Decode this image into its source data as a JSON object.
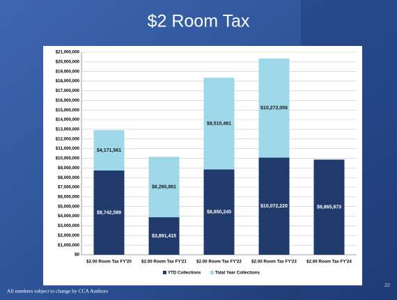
{
  "title": "$2 Room Tax",
  "footer": "All numbers subject to change by CCA Auditors",
  "page_number": "22",
  "chart_data": {
    "type": "stacked_bar",
    "categories": [
      "$2.00 Room Tax FY'20",
      "$2.00 Room Tax FY'21",
      "$2.00 Room Tax FY'22",
      "$2.00 Room Tax FY'23",
      "$2.00 Room Tax FY'24"
    ],
    "series": [
      {
        "name": "YTD Collections",
        "color": "#1f3a6b",
        "values": [
          8742589,
          3891415,
          8850245,
          10072220,
          9865973
        ],
        "value_labels": [
          "$8,742,589",
          "$3,891,415",
          "$8,850,245",
          "$10,072,220",
          "$9,865,973"
        ]
      },
      {
        "name": "Total Year Collections",
        "color": "#9fd8e9",
        "values": [
          4171561,
          6260861,
          9510461,
          10272056,
          null
        ],
        "value_labels": [
          "$4,171,561",
          "$6,260,861",
          "$9,510,461",
          "$10,272,056",
          null
        ]
      }
    ],
    "ylim": [
      0,
      21000000
    ],
    "yticks": [
      {
        "value": 0,
        "label": "$0"
      },
      {
        "value": 1000000,
        "label": "$1,000,000"
      },
      {
        "value": 2000000,
        "label": "$2,000,000"
      },
      {
        "value": 3000000,
        "label": "$3,000,000"
      },
      {
        "value": 4000000,
        "label": "$4,000,000"
      },
      {
        "value": 5000000,
        "label": "$5,000,000"
      },
      {
        "value": 6000000,
        "label": "$6,000,000"
      },
      {
        "value": 7000000,
        "label": "$7,000,000"
      },
      {
        "value": 8000000,
        "label": "$8,000,000"
      },
      {
        "value": 9000000,
        "label": "$9,000,000"
      },
      {
        "value": 10000000,
        "label": "$10,000,000"
      },
      {
        "value": 11000000,
        "label": "$11,000,000"
      },
      {
        "value": 12000000,
        "label": "$12,000,000"
      },
      {
        "value": 13000000,
        "label": "$13,000,000"
      },
      {
        "value": 14000000,
        "label": "$14,000,000"
      },
      {
        "value": 15000000,
        "label": "$15,000,000"
      },
      {
        "value": 16000000,
        "label": "$16,000,000"
      },
      {
        "value": 17000000,
        "label": "$17,000,000"
      },
      {
        "value": 18000000,
        "label": "$18,000,000"
      },
      {
        "value": 19000000,
        "label": "$19,000,000"
      },
      {
        "value": 20000000,
        "label": "$20,000,000"
      },
      {
        "value": 21000000,
        "label": "$21,000,000"
      }
    ],
    "grid": true,
    "legend": "bottom"
  }
}
